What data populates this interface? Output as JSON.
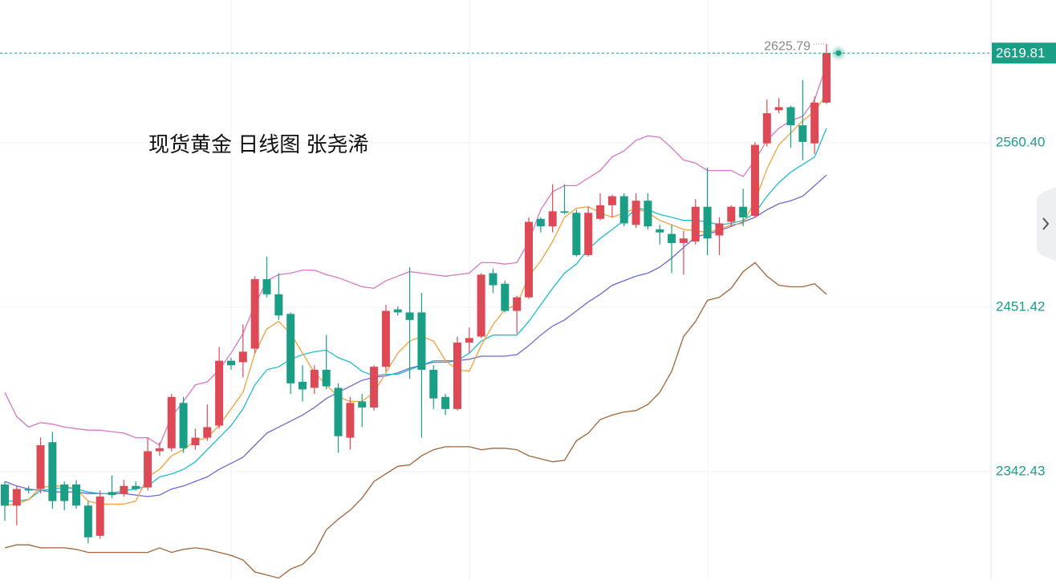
{
  "chart_data": {
    "type": "candlestick",
    "title": "现货黄金 日线图 张尧浠",
    "ylim": [
      2270.7,
      2655.0
    ],
    "yticks": [
      {
        "value": 2560.4,
        "label": "2560.40"
      },
      2451.42,
      2342.43
    ],
    "grid": true,
    "last_price": 2619.81,
    "high_label": 2625.79,
    "up_color": "#dd4a55",
    "down_color": "#1a9e86",
    "open": [
      2334,
      2320,
      2331,
      2331,
      2362,
      2334,
      2334,
      2320,
      2300,
      2329,
      2328,
      2333,
      2332,
      2356,
      2358,
      2388,
      2360,
      2365,
      2373,
      2416,
      2415,
      2424,
      2470,
      2460,
      2447,
      2402,
      2398,
      2410,
      2398,
      2365,
      2389,
      2385,
      2412,
      2450,
      2448,
      2448,
      2410,
      2392,
      2384,
      2428,
      2432,
      2474,
      2467,
      2449,
      2458,
      2510,
      2505,
      2515,
      2514,
      2486,
      2510,
      2519,
      2525,
      2506,
      2522,
      2503,
      2500,
      2494,
      2495,
      2518,
      2499,
      2508,
      2518,
      2512,
      2560,
      2582,
      2584,
      2572,
      2560,
      2587
    ],
    "high": [
      2336,
      2333,
      2333,
      2365,
      2369,
      2336,
      2337,
      2323,
      2330,
      2340,
      2337,
      2336,
      2365,
      2362,
      2394,
      2392,
      2371,
      2387,
      2425,
      2418,
      2440,
      2472,
      2485,
      2474,
      2448,
      2413,
      2413,
      2433,
      2401,
      2392,
      2394,
      2413,
      2453,
      2452,
      2478,
      2461,
      2413,
      2394,
      2432,
      2438,
      2474,
      2477,
      2469,
      2459,
      2511,
      2511,
      2533,
      2533,
      2516,
      2518,
      2527,
      2526,
      2527,
      2527,
      2527,
      2506,
      2506,
      2502,
      2523,
      2544,
      2511,
      2519,
      2530,
      2561,
      2589,
      2590,
      2585,
      2602,
      2591,
      2625.79
    ],
    "low": [
      2310,
      2307,
      2328,
      2328,
      2318,
      2317,
      2318,
      2295,
      2298,
      2325,
      2326,
      2330,
      2330,
      2353,
      2356,
      2355,
      2357,
      2363,
      2371,
      2410,
      2405,
      2421,
      2458,
      2443,
      2394,
      2389,
      2394,
      2397,
      2355,
      2357,
      2372,
      2383,
      2409,
      2446,
      2404,
      2365,
      2384,
      2380,
      2383,
      2421,
      2431,
      2461,
      2448,
      2434,
      2457,
      2501,
      2501,
      2513,
      2485,
      2485,
      2509,
      2511,
      2505,
      2504,
      2503,
      2493,
      2474,
      2473,
      2493,
      2486,
      2486,
      2505,
      2505,
      2511,
      2558,
      2580,
      2557,
      2549,
      2553,
      2586
    ],
    "close": [
      2320,
      2331,
      2330,
      2360,
      2323,
      2323,
      2320,
      2299,
      2326,
      2327,
      2333,
      2331,
      2356,
      2358,
      2392,
      2358,
      2365,
      2372,
      2416,
      2413,
      2422,
      2470,
      2460,
      2446,
      2401,
      2397,
      2410,
      2399,
      2366,
      2388,
      2385,
      2412,
      2449,
      2448,
      2443,
      2410,
      2391,
      2384,
      2428,
      2431,
      2473,
      2466,
      2449,
      2458,
      2508,
      2505,
      2515,
      2514,
      2486,
      2514,
      2519,
      2525,
      2507,
      2522,
      2505,
      2501,
      2494,
      2497,
      2518,
      2497,
      2507,
      2518,
      2511,
      2559,
      2580,
      2584,
      2572,
      2561,
      2587,
      2619.81
    ],
    "lines": [
      {
        "color": "#d977c6",
        "values": [
          2395,
          2379,
          2372,
          2375,
          2374,
          2372,
          2371,
          2370,
          2370,
          2369,
          2368,
          2365,
          2365,
          2360,
          2379,
          2389,
          2400,
          2402,
          2410,
          2421,
          2434,
          2453,
          2469,
          2473,
          2474,
          2476,
          2476,
          2473,
          2471,
          2468,
          2465,
          2464,
          2469,
          2472,
          2475,
          2474,
          2473,
          2472,
          2473,
          2474,
          2481,
          2481,
          2480,
          2481,
          2495,
          2516,
          2528,
          2532,
          2532,
          2537,
          2542,
          2551,
          2555,
          2562,
          2565,
          2564,
          2557,
          2549,
          2547,
          2542,
          2542,
          2542,
          2538,
          2549,
          2562,
          2570,
          2575,
          2578,
          2589,
          2612
        ]
      },
      {
        "color": "#a0643a",
        "values": [
          2292,
          2294,
          2294,
          2292,
          2292,
          2292,
          2291,
          2289,
          2289,
          2289,
          2289,
          2289,
          2289,
          2292,
          2289,
          2291,
          2292,
          2291,
          2289,
          2287,
          2284,
          2276,
          2274,
          2272,
          2278,
          2281,
          2289,
          2304,
          2311,
          2317,
          2325,
          2336,
          2341,
          2346,
          2347,
          2353,
          2357,
          2359,
          2359,
          2359,
          2357,
          2358,
          2358,
          2357,
          2353,
          2351,
          2349,
          2350,
          2363,
          2368,
          2377,
          2380,
          2382,
          2383,
          2387,
          2395,
          2409,
          2432,
          2442,
          2456,
          2458,
          2464,
          2475,
          2481,
          2472,
          2466,
          2465,
          2465,
          2467,
          2460
        ]
      },
      {
        "color": "#6a6ad8",
        "values": [
          2336,
          2333,
          2331,
          2330,
          2329,
          2329,
          2329,
          2328,
          2328,
          2328,
          2328,
          2327,
          2326,
          2327,
          2331,
          2333,
          2336,
          2339,
          2344,
          2348,
          2352,
          2360,
          2368,
          2372,
          2376,
          2380,
          2385,
          2391,
          2395,
          2399,
          2403,
          2405,
          2406,
          2408,
          2411,
          2413,
          2415,
          2415,
          2416,
          2417,
          2419,
          2419,
          2419,
          2420,
          2426,
          2433,
          2439,
          2443,
          2449,
          2455,
          2460,
          2466,
          2469,
          2472,
          2474,
          2478,
          2484,
          2491,
          2498,
          2500,
          2502,
          2505,
          2508,
          2511,
          2516,
          2520,
          2522,
          2525,
          2532,
          2539
        ]
      },
      {
        "color": "#1fbcd2",
        "values": [
          2323,
          2323,
          2324,
          2330,
          2331,
          2332,
          2331,
          2329,
          2328,
          2328,
          2330,
          2331,
          2333,
          2339,
          2341,
          2344,
          2349,
          2357,
          2365,
          2373,
          2384,
          2400,
          2410,
          2412,
          2417,
          2420,
          2422,
          2423,
          2418,
          2415,
          2409,
          2406,
          2407,
          2407,
          2410,
          2413,
          2416,
          2416,
          2416,
          2421,
          2429,
          2433,
          2433,
          2433,
          2442,
          2453,
          2464,
          2474,
          2480,
          2490,
          2497,
          2503,
          2509,
          2517,
          2516,
          2513,
          2511,
          2509,
          2509,
          2508,
          2506,
          2507,
          2509,
          2514,
          2525,
          2534,
          2541,
          2546,
          2551,
          2570
        ]
      },
      {
        "color": "#f5a03c",
        "values": [
          2320,
          2321,
          2324,
          2332,
          2333,
          2333,
          2331,
          2323,
          2321,
          2321,
          2321,
          2323,
          2339,
          2344,
          2353,
          2357,
          2363,
          2365,
          2373,
          2384,
          2395,
          2421,
          2437,
          2442,
          2434,
          2421,
          2408,
          2400,
          2392,
          2389,
          2389,
          2395,
          2408,
          2421,
          2429,
          2432,
          2429,
          2416,
          2410,
          2409,
          2426,
          2440,
          2450,
          2453,
          2472,
          2482,
          2495,
          2511,
          2517,
          2518,
          2514,
          2511,
          2514,
          2517,
          2514,
          2509,
          2506,
          2503,
          2502,
          2501,
          2503,
          2506,
          2507,
          2522,
          2543,
          2559,
          2567,
          2575,
          2581,
          2593
        ]
      }
    ]
  }
}
